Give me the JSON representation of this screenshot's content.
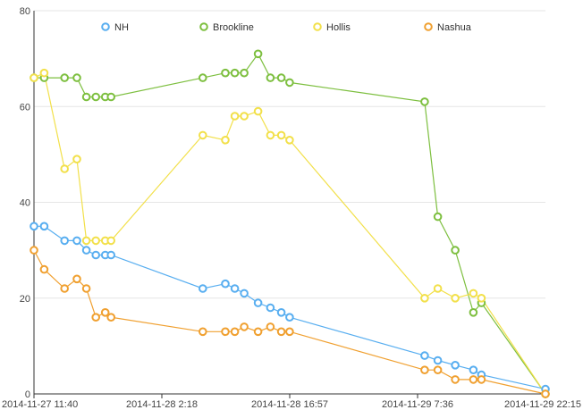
{
  "chart_data": {
    "type": "line",
    "x_axis": {
      "type": "time",
      "min": "2014-11-27 11:40",
      "max": "2014-11-29 22:15",
      "tick_labels": [
        "2014-11-27 11:40",
        "2014-11-28 2:18",
        "2014-11-28 16:57",
        "2014-11-29 7:36",
        "2014-11-29 22:15"
      ]
    },
    "y_axis": {
      "min": 0,
      "max": 80,
      "tick_labels": [
        "0",
        "20",
        "40",
        "60",
        "80"
      ]
    },
    "grid": true,
    "legend_position": "top",
    "series": [
      {
        "name": "NH",
        "color": "#58aef0",
        "points": [
          [
            "2014-11-27 11:40",
            35
          ],
          [
            "2014-11-27 12:50",
            35
          ],
          [
            "2014-11-27 15:10",
            32
          ],
          [
            "2014-11-27 16:35",
            32
          ],
          [
            "2014-11-27 17:40",
            30
          ],
          [
            "2014-11-27 18:45",
            29
          ],
          [
            "2014-11-27 19:50",
            29
          ],
          [
            "2014-11-27 20:30",
            29
          ],
          [
            "2014-11-28 7:00",
            22
          ],
          [
            "2014-11-28 9:35",
            23
          ],
          [
            "2014-11-28 10:40",
            22
          ],
          [
            "2014-11-28 11:45",
            21
          ],
          [
            "2014-11-28 13:20",
            19
          ],
          [
            "2014-11-28 14:45",
            18
          ],
          [
            "2014-11-28 16:00",
            17
          ],
          [
            "2014-11-28 16:57",
            16
          ],
          [
            "2014-11-29 8:25",
            8
          ],
          [
            "2014-11-29 9:55",
            7
          ],
          [
            "2014-11-29 11:55",
            6
          ],
          [
            "2014-11-29 14:00",
            5
          ],
          [
            "2014-11-29 14:55",
            4
          ],
          [
            "2014-11-29 22:15",
            1
          ]
        ]
      },
      {
        "name": "Brookline",
        "color": "#7dbf3f",
        "points": [
          [
            "2014-11-27 11:40",
            66
          ],
          [
            "2014-11-27 12:50",
            66
          ],
          [
            "2014-11-27 15:10",
            66
          ],
          [
            "2014-11-27 16:35",
            66
          ],
          [
            "2014-11-27 17:40",
            62
          ],
          [
            "2014-11-27 18:45",
            62
          ],
          [
            "2014-11-27 19:50",
            62
          ],
          [
            "2014-11-27 20:30",
            62
          ],
          [
            "2014-11-28 7:00",
            66
          ],
          [
            "2014-11-28 9:35",
            67
          ],
          [
            "2014-11-28 10:40",
            67
          ],
          [
            "2014-11-28 11:45",
            67
          ],
          [
            "2014-11-28 13:20",
            71
          ],
          [
            "2014-11-28 14:45",
            66
          ],
          [
            "2014-11-28 16:00",
            66
          ],
          [
            "2014-11-28 16:57",
            65
          ],
          [
            "2014-11-29 8:25",
            61
          ],
          [
            "2014-11-29 9:55",
            37
          ],
          [
            "2014-11-29 11:55",
            30
          ],
          [
            "2014-11-29 14:00",
            17
          ],
          [
            "2014-11-29 14:55",
            19
          ],
          [
            "2014-11-29 22:15",
            0
          ]
        ]
      },
      {
        "name": "Hollis",
        "color": "#f2e04a",
        "points": [
          [
            "2014-11-27 11:40",
            66
          ],
          [
            "2014-11-27 12:50",
            67
          ],
          [
            "2014-11-27 15:10",
            47
          ],
          [
            "2014-11-27 16:35",
            49
          ],
          [
            "2014-11-27 17:40",
            32
          ],
          [
            "2014-11-27 18:45",
            32
          ],
          [
            "2014-11-27 19:50",
            32
          ],
          [
            "2014-11-27 20:30",
            32
          ],
          [
            "2014-11-28 7:00",
            54
          ],
          [
            "2014-11-28 9:35",
            53
          ],
          [
            "2014-11-28 10:40",
            58
          ],
          [
            "2014-11-28 11:45",
            58
          ],
          [
            "2014-11-28 13:20",
            59
          ],
          [
            "2014-11-28 14:45",
            54
          ],
          [
            "2014-11-28 16:00",
            54
          ],
          [
            "2014-11-28 16:57",
            53
          ],
          [
            "2014-11-29 8:25",
            20
          ],
          [
            "2014-11-29 9:55",
            22
          ],
          [
            "2014-11-29 11:55",
            20
          ],
          [
            "2014-11-29 14:00",
            21
          ],
          [
            "2014-11-29 14:55",
            20
          ],
          [
            "2014-11-29 22:15",
            0
          ]
        ]
      },
      {
        "name": "Nashua",
        "color": "#f0a030",
        "points": [
          [
            "2014-11-27 11:40",
            30
          ],
          [
            "2014-11-27 12:50",
            26
          ],
          [
            "2014-11-27 15:10",
            22
          ],
          [
            "2014-11-27 16:35",
            24
          ],
          [
            "2014-11-27 17:40",
            22
          ],
          [
            "2014-11-27 18:45",
            16
          ],
          [
            "2014-11-27 19:50",
            17
          ],
          [
            "2014-11-27 20:30",
            16
          ],
          [
            "2014-11-28 7:00",
            13
          ],
          [
            "2014-11-28 9:35",
            13
          ],
          [
            "2014-11-28 10:40",
            13
          ],
          [
            "2014-11-28 11:45",
            14
          ],
          [
            "2014-11-28 13:20",
            13
          ],
          [
            "2014-11-28 14:45",
            14
          ],
          [
            "2014-11-28 16:00",
            13
          ],
          [
            "2014-11-28 16:57",
            13
          ],
          [
            "2014-11-29 8:25",
            5
          ],
          [
            "2014-11-29 9:55",
            5
          ],
          [
            "2014-11-29 11:55",
            3
          ],
          [
            "2014-11-29 14:00",
            3
          ],
          [
            "2014-11-29 14:55",
            3
          ],
          [
            "2014-11-29 22:15",
            0
          ]
        ]
      }
    ]
  }
}
